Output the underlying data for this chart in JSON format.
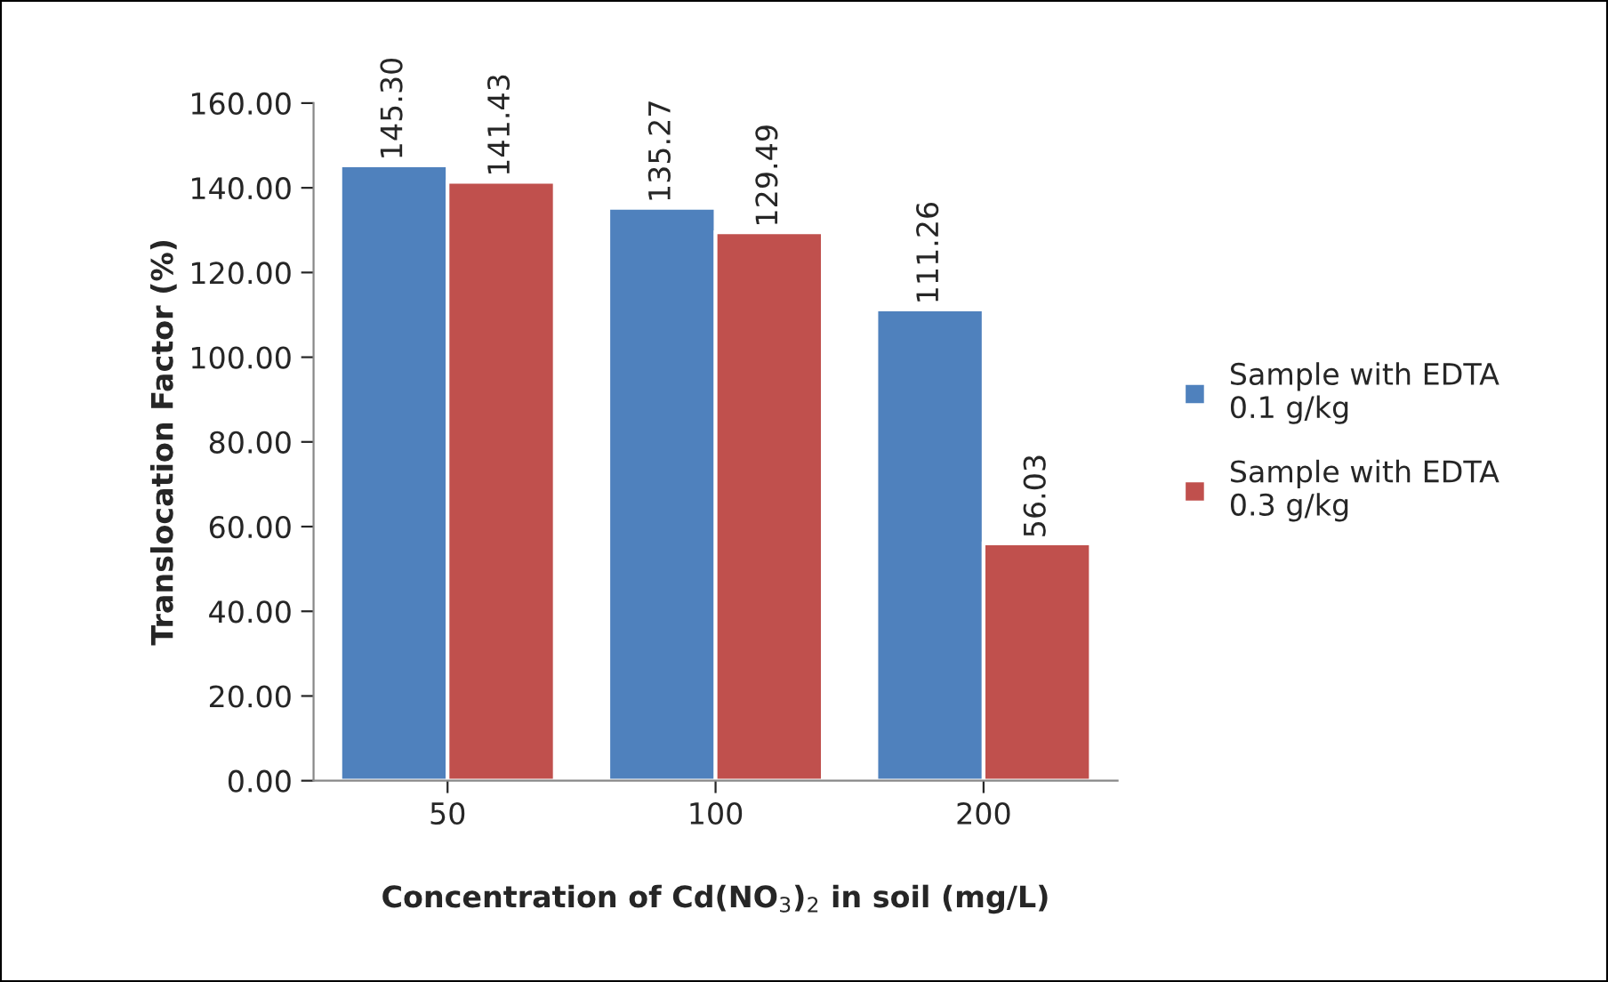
{
  "chart_data": {
    "type": "bar",
    "xlabel": "Concentration of Cd(NO$_{3}$)$_{2}$ in soil (mg/L)",
    "ylabel": "Translocation Factor (%)",
    "categories": [
      "50",
      "100",
      "200"
    ],
    "series": [
      {
        "name": "Sample with EDTA\n0.1 g/kg",
        "color": "#4f81bd",
        "values": [
          145.3,
          135.27,
          111.26
        ],
        "value_labels": [
          "145.30",
          "135.27",
          "111.26"
        ]
      },
      {
        "name": "Sample with EDTA\n0.3 g/kg",
        "color": "#c0504d",
        "values": [
          141.43,
          129.49,
          56.03
        ],
        "value_labels": [
          "141.43",
          "129.49",
          "56.03"
        ]
      }
    ],
    "ylim": [
      0,
      160
    ],
    "yticks": [
      {
        "value": 0,
        "label": "0.00"
      },
      {
        "value": 20,
        "label": "20.00"
      },
      {
        "value": 40,
        "label": "40.00"
      },
      {
        "value": 60,
        "label": "60.00"
      },
      {
        "value": 80,
        "label": "80.00"
      },
      {
        "value": 100,
        "label": "100.00"
      },
      {
        "value": 120,
        "label": "120.00"
      },
      {
        "value": 140,
        "label": "140.00"
      },
      {
        "value": 160,
        "label": "160.00"
      }
    ],
    "grid": false,
    "legend": "right"
  }
}
